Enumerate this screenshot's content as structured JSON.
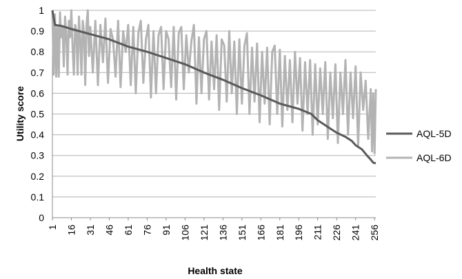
{
  "chart_data": {
    "type": "line",
    "title": "",
    "xlabel": "Health state",
    "ylabel": "Utility score",
    "ylim": [
      0,
      1
    ],
    "yticks": [
      "0",
      "0.1",
      "0.2",
      "0.3",
      "0.4",
      "0.5",
      "0.6",
      "0.7",
      "0.8",
      "0.9",
      "1"
    ],
    "xlim": [
      1,
      257
    ],
    "xticks": [
      "1",
      "16",
      "31",
      "46",
      "61",
      "76",
      "91",
      "106",
      "121",
      "136",
      "151",
      "166",
      "181",
      "196",
      "211",
      "226",
      "241",
      "256"
    ],
    "grid": "horizontal",
    "legend_position": "right",
    "series": [
      {
        "name": "AQL-5D",
        "color": "#595959",
        "points": [
          [
            1,
            1.0
          ],
          [
            3,
            0.93
          ],
          [
            8,
            0.925
          ],
          [
            16,
            0.91
          ],
          [
            31,
            0.885
          ],
          [
            46,
            0.86
          ],
          [
            61,
            0.825
          ],
          [
            76,
            0.8
          ],
          [
            91,
            0.77
          ],
          [
            106,
            0.74
          ],
          [
            121,
            0.7
          ],
          [
            136,
            0.665
          ],
          [
            151,
            0.625
          ],
          [
            166,
            0.59
          ],
          [
            181,
            0.55
          ],
          [
            196,
            0.525
          ],
          [
            206,
            0.5
          ],
          [
            211,
            0.47
          ],
          [
            221,
            0.43
          ],
          [
            226,
            0.41
          ],
          [
            233,
            0.39
          ],
          [
            238,
            0.37
          ],
          [
            241,
            0.35
          ],
          [
            246,
            0.33
          ],
          [
            250,
            0.3
          ],
          [
            253,
            0.28
          ],
          [
            255,
            0.265
          ],
          [
            257,
            0.262
          ]
        ]
      },
      {
        "name": "AQL-6D",
        "color": "#b3b3b3",
        "points": [
          [
            1,
            1.0
          ],
          [
            2,
            0.69
          ],
          [
            3,
            0.98
          ],
          [
            4,
            0.68
          ],
          [
            5,
            0.92
          ],
          [
            6,
            0.68
          ],
          [
            7,
            0.99
          ],
          [
            8,
            0.87
          ],
          [
            9,
            0.92
          ],
          [
            10,
            0.73
          ],
          [
            11,
            0.97
          ],
          [
            12,
            0.88
          ],
          [
            13,
            0.69
          ],
          [
            14,
            0.95
          ],
          [
            15,
            0.87
          ],
          [
            16,
            1.0
          ],
          [
            17,
            0.82
          ],
          [
            18,
            0.69
          ],
          [
            19,
            0.93
          ],
          [
            20,
            0.9
          ],
          [
            21,
            0.69
          ],
          [
            22,
            0.97
          ],
          [
            23,
            0.86
          ],
          [
            24,
            0.69
          ],
          [
            25,
            0.95
          ],
          [
            26,
            0.89
          ],
          [
            27,
            0.64
          ],
          [
            28,
            0.93
          ],
          [
            29,
            1.0
          ],
          [
            30,
            0.78
          ],
          [
            31,
            0.92
          ],
          [
            33,
            0.7
          ],
          [
            35,
            0.95
          ],
          [
            37,
            0.64
          ],
          [
            39,
            0.93
          ],
          [
            41,
            0.75
          ],
          [
            43,
            0.96
          ],
          [
            45,
            0.65
          ],
          [
            47,
            0.91
          ],
          [
            49,
            0.86
          ],
          [
            51,
            0.68
          ],
          [
            53,
            0.95
          ],
          [
            55,
            0.63
          ],
          [
            57,
            0.9
          ],
          [
            59,
            0.8
          ],
          [
            61,
            0.93
          ],
          [
            63,
            0.64
          ],
          [
            65,
            0.92
          ],
          [
            67,
            0.6
          ],
          [
            69,
            0.89
          ],
          [
            71,
            0.95
          ],
          [
            73,
            0.65
          ],
          [
            75,
            0.86
          ],
          [
            77,
            0.93
          ],
          [
            79,
            0.58
          ],
          [
            81,
            0.9
          ],
          [
            83,
            0.6
          ],
          [
            85,
            0.88
          ],
          [
            87,
            0.92
          ],
          [
            89,
            0.62
          ],
          [
            91,
            0.9
          ],
          [
            93,
            0.86
          ],
          [
            95,
            0.63
          ],
          [
            97,
            0.92
          ],
          [
            99,
            0.57
          ],
          [
            101,
            0.89
          ],
          [
            103,
            0.92
          ],
          [
            105,
            0.62
          ],
          [
            107,
            0.88
          ],
          [
            109,
            0.7
          ],
          [
            111,
            0.85
          ],
          [
            113,
            0.93
          ],
          [
            115,
            0.55
          ],
          [
            117,
            0.87
          ],
          [
            119,
            0.6
          ],
          [
            121,
            0.86
          ],
          [
            123,
            0.9
          ],
          [
            125,
            0.57
          ],
          [
            127,
            0.85
          ],
          [
            129,
            0.62
          ],
          [
            131,
            0.88
          ],
          [
            133,
            0.52
          ],
          [
            135,
            0.86
          ],
          [
            137,
            0.83
          ],
          [
            139,
            0.56
          ],
          [
            141,
            0.9
          ],
          [
            143,
            0.6
          ],
          [
            145,
            0.85
          ],
          [
            147,
            0.5
          ],
          [
            149,
            0.86
          ],
          [
            151,
            0.55
          ],
          [
            153,
            0.83
          ],
          [
            155,
            0.89
          ],
          [
            157,
            0.5
          ],
          [
            159,
            0.82
          ],
          [
            161,
            0.56
          ],
          [
            163,
            0.84
          ],
          [
            165,
            0.46
          ],
          [
            167,
            0.8
          ],
          [
            169,
            0.55
          ],
          [
            171,
            0.82
          ],
          [
            173,
            0.45
          ],
          [
            175,
            0.8
          ],
          [
            177,
            0.83
          ],
          [
            179,
            0.5
          ],
          [
            181,
            0.81
          ],
          [
            183,
            0.44
          ],
          [
            185,
            0.78
          ],
          [
            187,
            0.52
          ],
          [
            189,
            0.76
          ],
          [
            191,
            0.46
          ],
          [
            193,
            0.8
          ],
          [
            195,
            0.55
          ],
          [
            197,
            0.77
          ],
          [
            199,
            0.42
          ],
          [
            201,
            0.75
          ],
          [
            203,
            0.5
          ],
          [
            205,
            0.76
          ],
          [
            207,
            0.4
          ],
          [
            209,
            0.74
          ],
          [
            211,
            0.45
          ],
          [
            213,
            0.72
          ],
          [
            215,
            0.5
          ],
          [
            217,
            0.75
          ],
          [
            219,
            0.38
          ],
          [
            221,
            0.7
          ],
          [
            223,
            0.48
          ],
          [
            225,
            0.74
          ],
          [
            227,
            0.36
          ],
          [
            229,
            0.7
          ],
          [
            231,
            0.5
          ],
          [
            233,
            0.76
          ],
          [
            235,
            0.4
          ],
          [
            237,
            0.7
          ],
          [
            239,
            0.48
          ],
          [
            241,
            0.73
          ],
          [
            243,
            0.35
          ],
          [
            245,
            0.7
          ],
          [
            247,
            0.52
          ],
          [
            249,
            0.66
          ],
          [
            251,
            0.38
          ],
          [
            253,
            0.62
          ],
          [
            254,
            0.32
          ],
          [
            255,
            0.6
          ],
          [
            256,
            0.31
          ],
          [
            257,
            0.62
          ]
        ]
      }
    ]
  }
}
